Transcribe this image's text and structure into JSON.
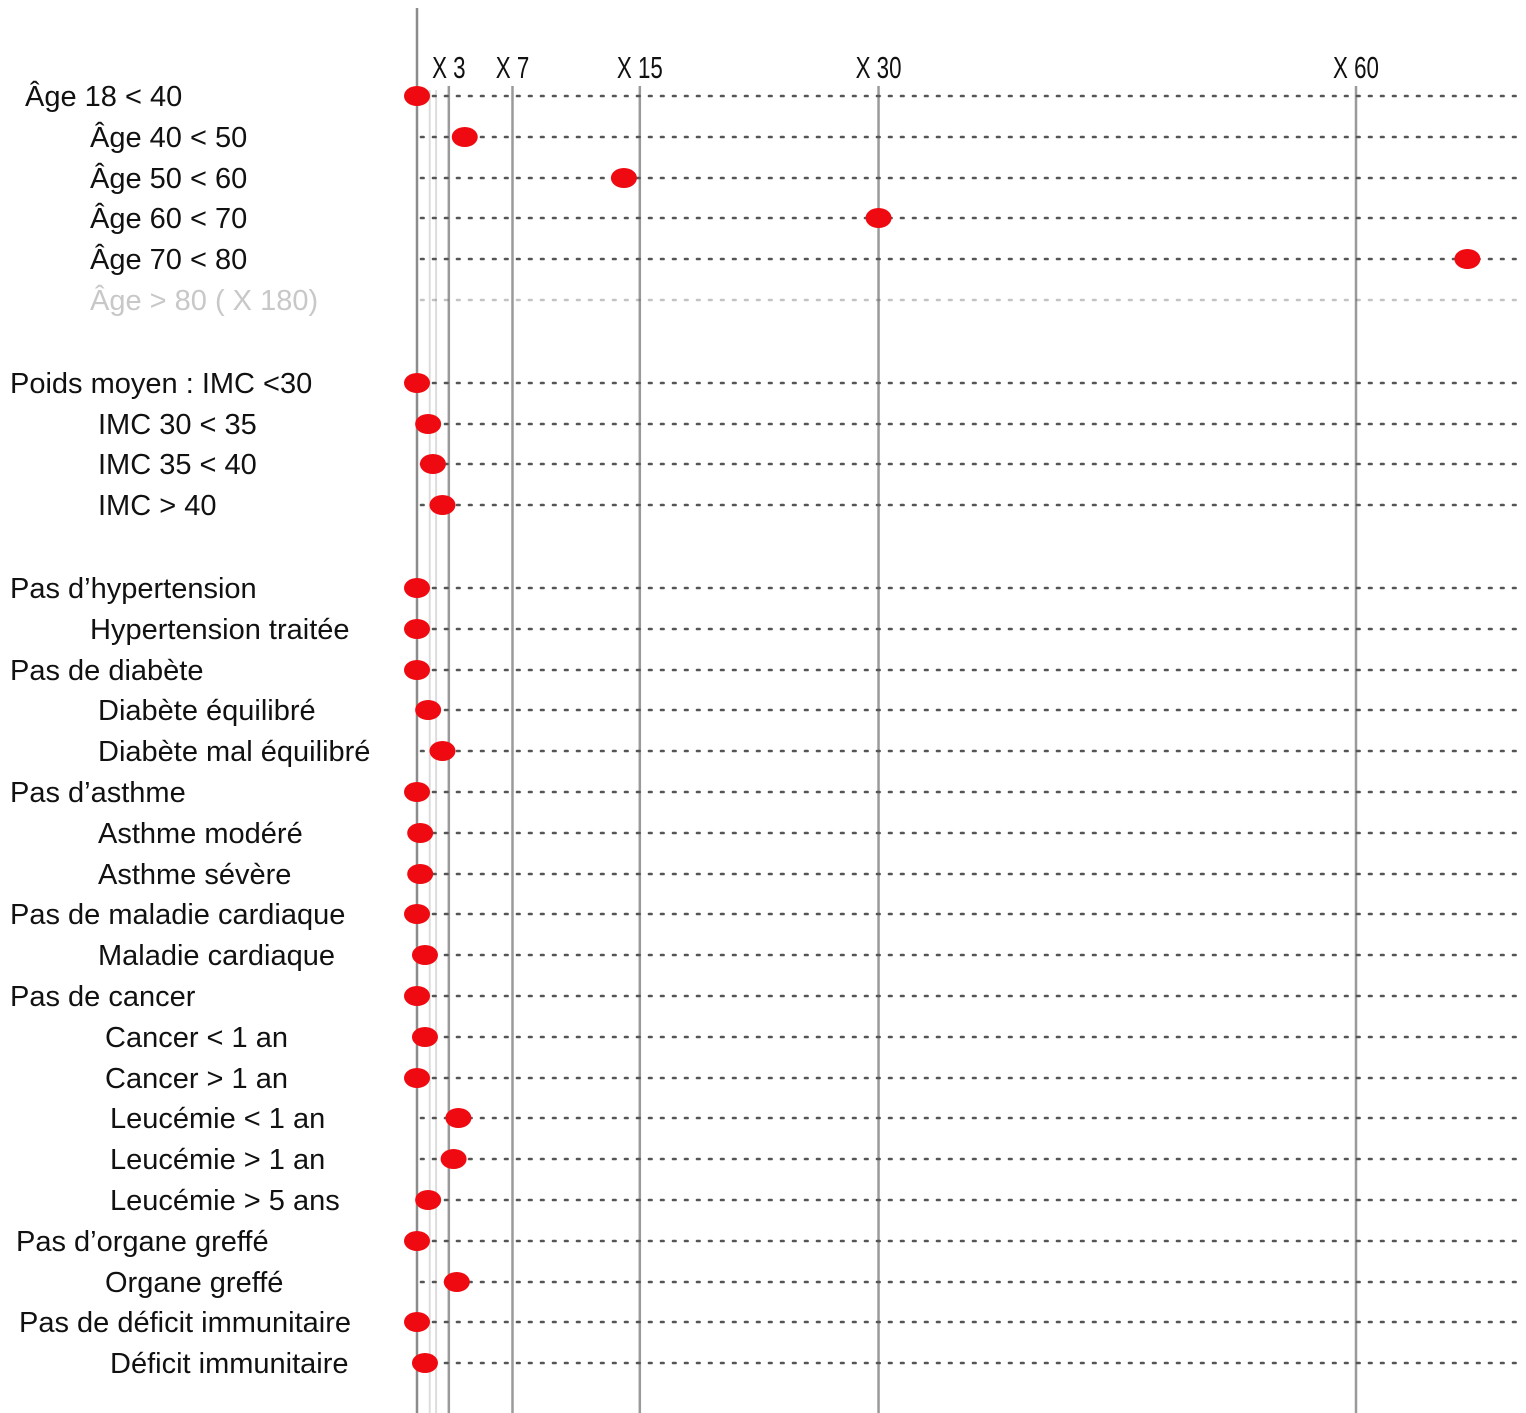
{
  "chart_data": {
    "type": "scatter",
    "title": "",
    "xlabel": "",
    "ylabel": "",
    "x_scale": "linear",
    "xlim": [
      1,
      68
    ],
    "grid": true,
    "legend": "none",
    "colors": {
      "marker": "#ee0a10",
      "axis_line": "#8c8c8c",
      "ref_line": "#9a9a9a",
      "light_line": "#dcdcdc",
      "row_dots": "#555555",
      "label": "#111111",
      "muted_label": "#c8c8c8"
    },
    "reference_lines": [
      {
        "value": 3,
        "label": "X 3"
      },
      {
        "value": 7,
        "label": "X 7"
      },
      {
        "value": 15,
        "label": "X 15"
      },
      {
        "value": 30,
        "label": "X 30"
      },
      {
        "value": 60,
        "label": "X 60"
      }
    ],
    "light_lines": [
      1.8,
      2.2
    ],
    "rows": [
      {
        "label": "Âge 18 < 40",
        "value": 1,
        "indent": 1
      },
      {
        "label": "Âge 40 < 50",
        "value": 4,
        "indent": 2
      },
      {
        "label": "Âge 50 < 60",
        "value": 14,
        "indent": 2
      },
      {
        "label": "Âge 60 < 70",
        "value": 30,
        "indent": 2
      },
      {
        "label": "Âge 70 < 80",
        "value": 67,
        "indent": 2
      },
      {
        "label": "Âge > 80 ( X 180)",
        "value": null,
        "indent": 2,
        "muted": true
      },
      {
        "label": "Poids moyen : IMC <30",
        "value": 1,
        "indent": 0,
        "gap_before": true
      },
      {
        "label": "IMC 30 < 35",
        "value": 1.7,
        "indent": 3
      },
      {
        "label": "IMC 35 < 40",
        "value": 2,
        "indent": 3
      },
      {
        "label": "IMC    > 40",
        "value": 2.6,
        "indent": 3
      },
      {
        "label": "Pas d’hypertension",
        "value": 1,
        "indent": 0,
        "gap_before": true
      },
      {
        "label": "Hypertension traitée",
        "value": 1,
        "indent": 2
      },
      {
        "label": "Pas de diabète",
        "value": 1,
        "indent": 0
      },
      {
        "label": "Diabète équilibré",
        "value": 1.7,
        "indent": 3
      },
      {
        "label": "Diabète mal équilibré",
        "value": 2.6,
        "indent": 3
      },
      {
        "label": "Pas d’asthme",
        "value": 1,
        "indent": 0
      },
      {
        "label": "Asthme modéré",
        "value": 1.2,
        "indent": 3
      },
      {
        "label": "Asthme sévère",
        "value": 1.2,
        "indent": 3
      },
      {
        "label": "Pas de maladie cardiaque",
        "value": 1,
        "indent": 0
      },
      {
        "label": "Maladie cardiaque",
        "value": 1.5,
        "indent": 3
      },
      {
        "label": "Pas de cancer",
        "value": 1,
        "indent": 0
      },
      {
        "label": "Cancer < 1 an",
        "value": 1.5,
        "indent": 4
      },
      {
        "label": "Cancer > 1 an",
        "value": 1,
        "indent": 4
      },
      {
        "label": "Leucémie < 1 an",
        "value": 3.6,
        "indent": 5
      },
      {
        "label": "Leucémie > 1 an",
        "value": 3.3,
        "indent": 5
      },
      {
        "label": "Leucémie > 5 ans",
        "value": 1.7,
        "indent": 5
      },
      {
        "label": "Pas d’organe greffé",
        "value": 1,
        "indent": 6
      },
      {
        "label": "Organe greffé",
        "value": 3.5,
        "indent": 4
      },
      {
        "label": "Pas de déficit immunitaire",
        "value": 1,
        "indent": 7
      },
      {
        "label": "Déficit immunitaire",
        "value": 1.5,
        "indent": 5
      }
    ]
  }
}
